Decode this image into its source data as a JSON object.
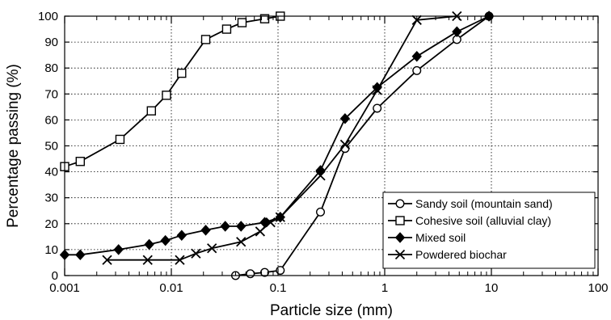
{
  "chart_data": {
    "type": "scatter",
    "title": "",
    "xlabel": "Particle size (mm)",
    "ylabel": "Percentage passing (%)",
    "xscale": "log",
    "xlim": [
      0.001,
      100
    ],
    "ylim": [
      0,
      100
    ],
    "grid": true,
    "legend_position": "bottom-right",
    "x_ticks": [
      {
        "value": 0.001,
        "label": "0.001"
      },
      {
        "value": 0.01,
        "label": "0.01"
      },
      {
        "value": 0.1,
        "label": "0.1"
      },
      {
        "value": 1,
        "label": "1"
      },
      {
        "value": 10,
        "label": "10"
      },
      {
        "value": 100,
        "label": "100"
      }
    ],
    "y_ticks": [
      {
        "value": 0,
        "label": "0"
      },
      {
        "value": 10,
        "label": "10"
      },
      {
        "value": 20,
        "label": "20"
      },
      {
        "value": 30,
        "label": "30"
      },
      {
        "value": 40,
        "label": "40"
      },
      {
        "value": 50,
        "label": "50"
      },
      {
        "value": 60,
        "label": "60"
      },
      {
        "value": 70,
        "label": "70"
      },
      {
        "value": 80,
        "label": "80"
      },
      {
        "value": 90,
        "label": "90"
      },
      {
        "value": 100,
        "label": "100"
      }
    ],
    "series": [
      {
        "name": "Sandy soil (mountain sand)",
        "marker": "circle-open",
        "points": [
          [
            0.04,
            0
          ],
          [
            0.055,
            0.7
          ],
          [
            0.075,
            1.2
          ],
          [
            0.105,
            2
          ],
          [
            0.25,
            24.5
          ],
          [
            0.425,
            49
          ],
          [
            0.85,
            64.5
          ],
          [
            2,
            79
          ],
          [
            4.75,
            91
          ],
          [
            9.5,
            100
          ]
        ]
      },
      {
        "name": "Cohesive soil (alluvial clay)",
        "marker": "square-open",
        "points": [
          [
            0.001,
            42
          ],
          [
            0.0014,
            44
          ],
          [
            0.0033,
            52.5
          ],
          [
            0.0065,
            63.5
          ],
          [
            0.009,
            69.5
          ],
          [
            0.0125,
            78
          ],
          [
            0.021,
            91
          ],
          [
            0.033,
            95
          ],
          [
            0.046,
            97.5
          ],
          [
            0.075,
            99
          ],
          [
            0.105,
            100
          ]
        ]
      },
      {
        "name": "Mixed soil",
        "marker": "diamond-filled",
        "points": [
          [
            0.001,
            8
          ],
          [
            0.0014,
            8
          ],
          [
            0.0032,
            10
          ],
          [
            0.0062,
            12
          ],
          [
            0.0088,
            13.5
          ],
          [
            0.0125,
            15.5
          ],
          [
            0.021,
            17.5
          ],
          [
            0.032,
            19
          ],
          [
            0.045,
            19
          ],
          [
            0.075,
            20.5
          ],
          [
            0.105,
            22.5
          ],
          [
            0.25,
            40.5
          ],
          [
            0.425,
            60.5
          ],
          [
            0.85,
            72.5
          ],
          [
            2,
            84.5
          ],
          [
            4.75,
            94
          ],
          [
            9.5,
            100
          ]
        ]
      },
      {
        "name": "Powdered biochar",
        "marker": "x-cross",
        "points": [
          [
            0.0025,
            6
          ],
          [
            0.006,
            6
          ],
          [
            0.012,
            6
          ],
          [
            0.017,
            8.5
          ],
          [
            0.024,
            10.5
          ],
          [
            0.045,
            13
          ],
          [
            0.068,
            17
          ],
          [
            0.085,
            20.5
          ],
          [
            0.105,
            22.5
          ],
          [
            0.25,
            38.5
          ],
          [
            0.425,
            50.5
          ],
          [
            0.85,
            71.5
          ],
          [
            2,
            98.5
          ],
          [
            4.75,
            100
          ]
        ]
      }
    ]
  }
}
